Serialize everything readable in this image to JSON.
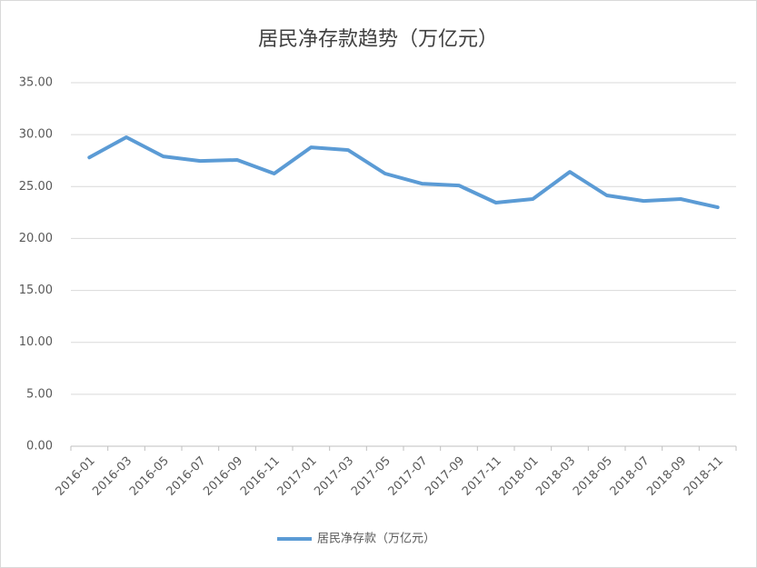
{
  "chart_data": {
    "type": "line",
    "title": "居民净存款趋势（万亿元）",
    "categories": [
      "2016-01",
      "2016-03",
      "2016-05",
      "2016-07",
      "2016-09",
      "2016-11",
      "2017-01",
      "2017-03",
      "2017-05",
      "2017-07",
      "2017-09",
      "2017-11",
      "2018-01",
      "2018-03",
      "2018-05",
      "2018-07",
      "2018-09",
      "2018-11"
    ],
    "series": [
      {
        "name": "居民净存款（万亿元）",
        "color": "#5b9bd5",
        "values": [
          27.8,
          29.75,
          27.9,
          27.47,
          27.56,
          26.25,
          28.78,
          28.52,
          26.25,
          25.28,
          25.1,
          23.45,
          23.8,
          26.42,
          24.15,
          23.62,
          23.8,
          23.0
        ]
      }
    ],
    "ylim": [
      0,
      35
    ],
    "yticks": [
      {
        "value": 0,
        "label": "0.00"
      },
      {
        "value": 5,
        "label": "5.00"
      },
      {
        "value": 10,
        "label": "10.00"
      },
      {
        "value": 15,
        "label": "15.00"
      },
      {
        "value": 20,
        "label": "20.00"
      },
      {
        "value": 25,
        "label": "25.00"
      },
      {
        "value": 30,
        "label": "30.00"
      },
      {
        "value": 35,
        "label": "35.00"
      }
    ],
    "grid": true,
    "legend": "bottom"
  }
}
